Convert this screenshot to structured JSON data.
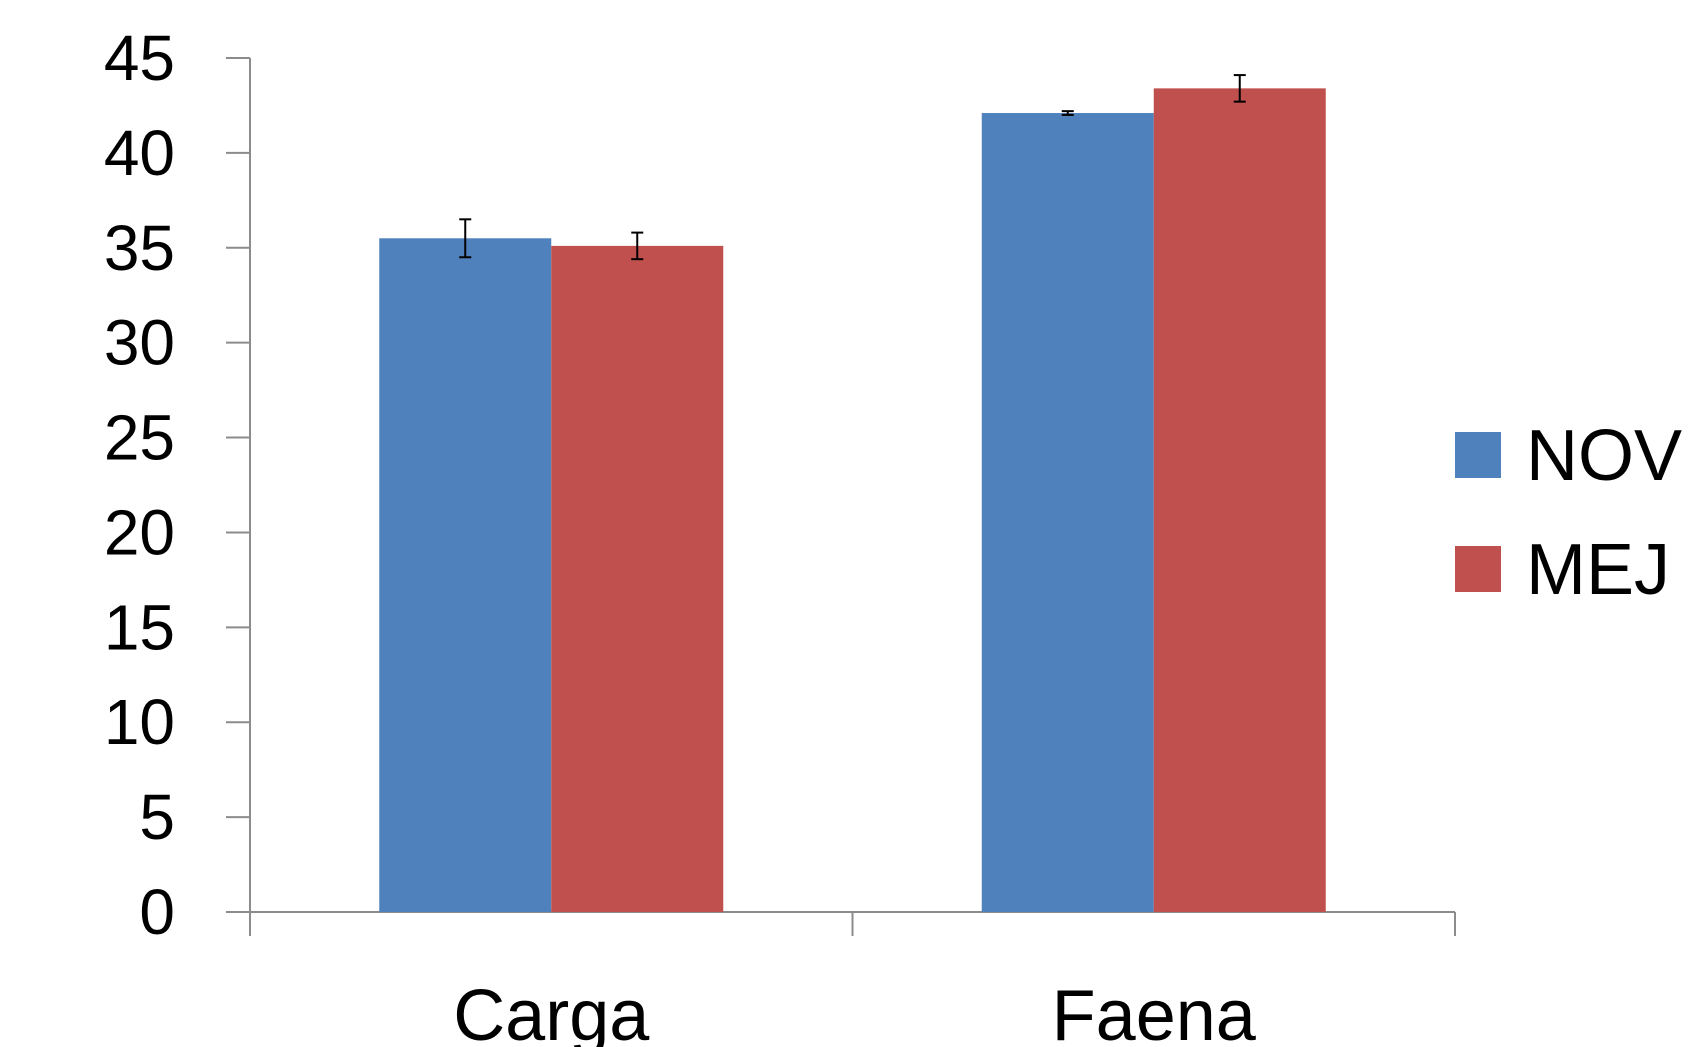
{
  "chart_data": {
    "type": "bar",
    "title": "",
    "xlabel": "",
    "ylabel": "",
    "categories": [
      "Carga",
      "Faena"
    ],
    "series": [
      {
        "name": "NOV",
        "color": "#4f81bd",
        "values": [
          35.5,
          42.1
        ],
        "errors": [
          1.0,
          0.1
        ]
      },
      {
        "name": "MEJ",
        "color": "#c0504d",
        "values": [
          35.1,
          43.4
        ],
        "errors": [
          0.7,
          0.7
        ]
      }
    ],
    "ylim": [
      0,
      45
    ],
    "yticks": [
      0,
      5,
      10,
      15,
      20,
      25,
      30,
      35,
      40,
      45
    ],
    "grid": false,
    "legend": "right"
  }
}
